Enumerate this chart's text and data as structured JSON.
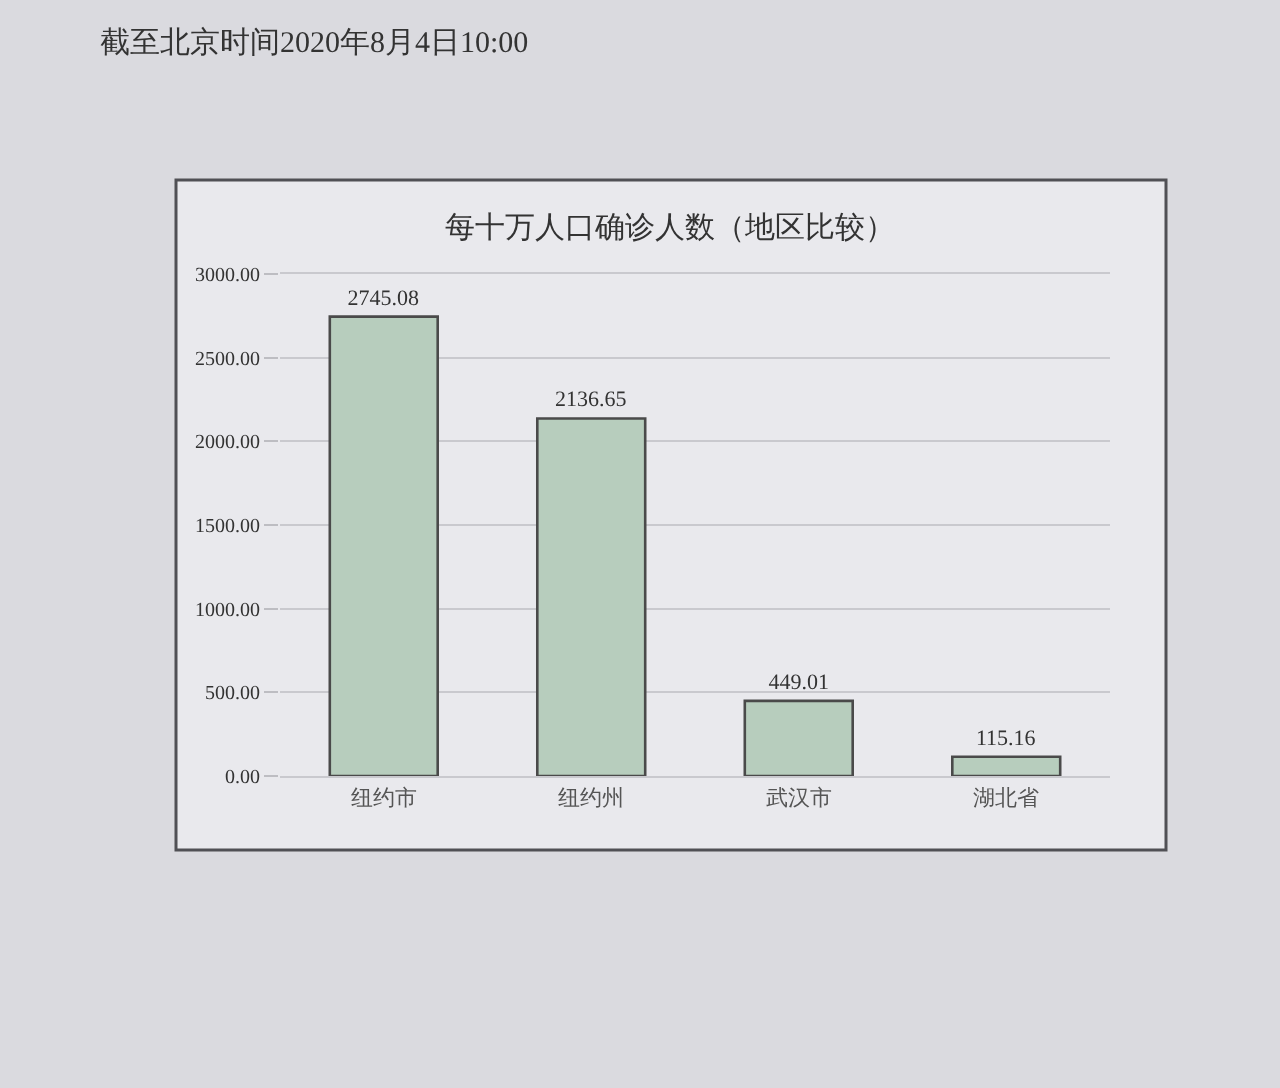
{
  "chart_data": {
    "type": "bar",
    "title": "每十万人口确诊人数（地区比较）",
    "annotations": [
      "截至北京时间2020年8月4日10:00"
    ],
    "categories": [
      "纽约市",
      "纽约州",
      "武汉市",
      "湖北省"
    ],
    "values": [
      2745.08,
      2136.65,
      449.01,
      115.16
    ],
    "color": "#b7cdbd",
    "ylim": [
      0,
      3000
    ],
    "yticks": [
      {
        "value": 0,
        "label": "0.00"
      },
      {
        "value": 500,
        "label": "500.00"
      },
      {
        "value": 1000,
        "label": "1000.00"
      },
      {
        "value": 1500,
        "label": "1500.00"
      },
      {
        "value": 2000,
        "label": "2000.00"
      },
      {
        "value": 2500,
        "label": "2500.00"
      },
      {
        "value": 3000,
        "label": "3000.00"
      }
    ],
    "grid": "y",
    "data_labels": true
  }
}
